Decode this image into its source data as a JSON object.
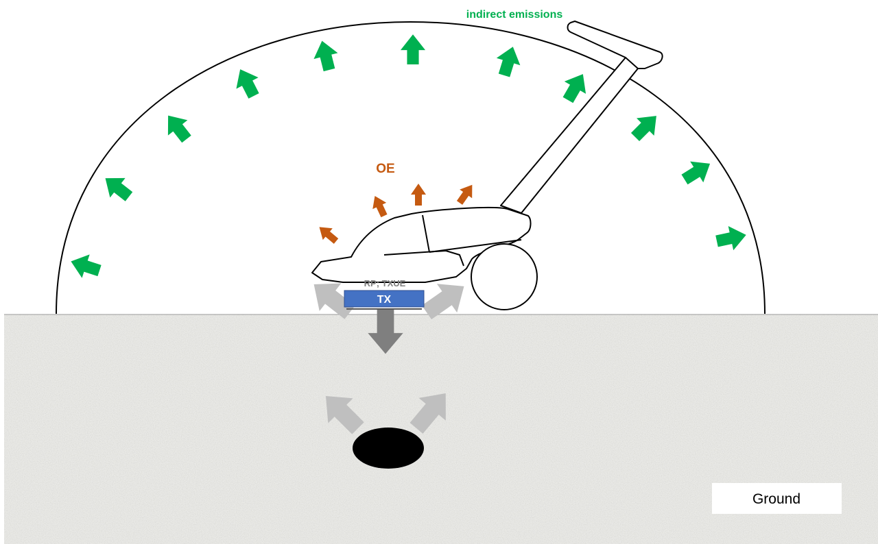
{
  "labels": {
    "indirect_emissions": "indirect emissions",
    "oe": "OE",
    "rp_txue": "RP; TXUE",
    "tx": "TX",
    "ground": "Ground"
  },
  "colors": {
    "green_arrow": "#00b050",
    "orange_arrow": "#c55a11",
    "light_gray_arrow": "#bfbfbf",
    "dark_gray_arrow": "#7f7f7f",
    "tx_box": "#4472c4",
    "tx_text": "#ffffff",
    "label_gray": "#7f7f7f",
    "ground_fill": "#e9e9e6",
    "buried_object": "#000000"
  },
  "icons": {
    "device": "walk-behind-detector-device-icon",
    "buried_object": "buried-object-icon"
  }
}
